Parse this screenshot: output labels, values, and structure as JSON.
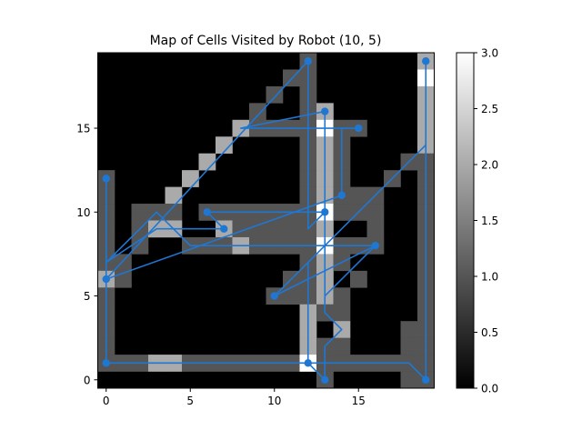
{
  "chart_data": {
    "type": "heatmap",
    "title": "Map of Cells Visited by Robot (10, 5)",
    "xlabel": "",
    "ylabel": "",
    "xlim": [
      -0.5,
      19.5
    ],
    "ylim": [
      -0.5,
      19.5
    ],
    "x_ticks": [
      0,
      5,
      10,
      15
    ],
    "y_ticks": [
      0,
      5,
      10,
      15
    ],
    "colorbar": {
      "min": 0.0,
      "max": 3.0,
      "colormap": "gray",
      "ticks": [
        "0.0",
        "0.5",
        "1.0",
        "1.5",
        "2.0",
        "2.5",
        "3.0"
      ]
    },
    "cell_values": [
      {
        "x": 0,
        "y": 12,
        "v": 1
      },
      {
        "x": 0,
        "y": 11,
        "v": 1
      },
      {
        "x": 0,
        "y": 10,
        "v": 1
      },
      {
        "x": 0,
        "y": 9,
        "v": 1
      },
      {
        "x": 0,
        "y": 8,
        "v": 1
      },
      {
        "x": 0,
        "y": 7,
        "v": 1
      },
      {
        "x": 0,
        "y": 6,
        "v": 2
      },
      {
        "x": 0,
        "y": 5,
        "v": 1
      },
      {
        "x": 0,
        "y": 4,
        "v": 1
      },
      {
        "x": 0,
        "y": 3,
        "v": 1
      },
      {
        "x": 0,
        "y": 2,
        "v": 1
      },
      {
        "x": 0,
        "y": 1,
        "v": 1
      },
      {
        "x": 1,
        "y": 7,
        "v": 1
      },
      {
        "x": 1,
        "y": 6,
        "v": 1
      },
      {
        "x": 1,
        "y": 1,
        "v": 1
      },
      {
        "x": 2,
        "y": 10,
        "v": 1
      },
      {
        "x": 2,
        "y": 9,
        "v": 1
      },
      {
        "x": 2,
        "y": 8,
        "v": 1
      },
      {
        "x": 2,
        "y": 1,
        "v": 1
      },
      {
        "x": 3,
        "y": 10,
        "v": 1
      },
      {
        "x": 3,
        "y": 9,
        "v": 2
      },
      {
        "x": 3,
        "y": 1,
        "v": 2
      },
      {
        "x": 4,
        "y": 11,
        "v": 2
      },
      {
        "x": 4,
        "y": 10,
        "v": 1
      },
      {
        "x": 4,
        "y": 9,
        "v": 2
      },
      {
        "x": 4,
        "y": 1,
        "v": 2
      },
      {
        "x": 5,
        "y": 12,
        "v": 2
      },
      {
        "x": 5,
        "y": 8,
        "v": 1
      },
      {
        "x": 5,
        "y": 1,
        "v": 1
      },
      {
        "x": 6,
        "y": 13,
        "v": 2
      },
      {
        "x": 6,
        "y": 10,
        "v": 1
      },
      {
        "x": 6,
        "y": 8,
        "v": 1
      },
      {
        "x": 6,
        "y": 1,
        "v": 1
      },
      {
        "x": 7,
        "y": 14,
        "v": 2
      },
      {
        "x": 7,
        "y": 10,
        "v": 1
      },
      {
        "x": 7,
        "y": 9,
        "v": 2
      },
      {
        "x": 7,
        "y": 8,
        "v": 1
      },
      {
        "x": 7,
        "y": 1,
        "v": 1
      },
      {
        "x": 8,
        "y": 15,
        "v": 2
      },
      {
        "x": 8,
        "y": 10,
        "v": 1
      },
      {
        "x": 8,
        "y": 9,
        "v": 1
      },
      {
        "x": 8,
        "y": 8,
        "v": 2
      },
      {
        "x": 8,
        "y": 1,
        "v": 1
      },
      {
        "x": 9,
        "y": 16,
        "v": 1
      },
      {
        "x": 9,
        "y": 15,
        "v": 1
      },
      {
        "x": 9,
        "y": 10,
        "v": 1
      },
      {
        "x": 9,
        "y": 9,
        "v": 1
      },
      {
        "x": 9,
        "y": 8,
        "v": 1
      },
      {
        "x": 9,
        "y": 1,
        "v": 1
      },
      {
        "x": 10,
        "y": 17,
        "v": 1
      },
      {
        "x": 10,
        "y": 15,
        "v": 1
      },
      {
        "x": 10,
        "y": 10,
        "v": 1
      },
      {
        "x": 10,
        "y": 9,
        "v": 1
      },
      {
        "x": 10,
        "y": 8,
        "v": 1
      },
      {
        "x": 10,
        "y": 5,
        "v": 1
      },
      {
        "x": 10,
        "y": 1,
        "v": 1
      },
      {
        "x": 11,
        "y": 18,
        "v": 1
      },
      {
        "x": 11,
        "y": 15,
        "v": 1
      },
      {
        "x": 11,
        "y": 10,
        "v": 1
      },
      {
        "x": 11,
        "y": 9,
        "v": 1
      },
      {
        "x": 11,
        "y": 8,
        "v": 1
      },
      {
        "x": 11,
        "y": 6,
        "v": 1
      },
      {
        "x": 11,
        "y": 5,
        "v": 1
      },
      {
        "x": 11,
        "y": 1,
        "v": 1
      },
      {
        "x": 12,
        "y": 19,
        "v": 1
      },
      {
        "x": 12,
        "y": 18,
        "v": 1
      },
      {
        "x": 12,
        "y": 17,
        "v": 1
      },
      {
        "x": 12,
        "y": 16,
        "v": 1
      },
      {
        "x": 12,
        "y": 15,
        "v": 1
      },
      {
        "x": 12,
        "y": 14,
        "v": 1
      },
      {
        "x": 12,
        "y": 13,
        "v": 1
      },
      {
        "x": 12,
        "y": 12,
        "v": 1
      },
      {
        "x": 12,
        "y": 11,
        "v": 1
      },
      {
        "x": 12,
        "y": 10,
        "v": 1
      },
      {
        "x": 12,
        "y": 9,
        "v": 1
      },
      {
        "x": 12,
        "y": 8,
        "v": 1
      },
      {
        "x": 12,
        "y": 7,
        "v": 1
      },
      {
        "x": 12,
        "y": 6,
        "v": 1
      },
      {
        "x": 12,
        "y": 5,
        "v": 1
      },
      {
        "x": 12,
        "y": 4,
        "v": 2
      },
      {
        "x": 12,
        "y": 3,
        "v": 2
      },
      {
        "x": 12,
        "y": 2,
        "v": 2
      },
      {
        "x": 12,
        "y": 1,
        "v": 3
      },
      {
        "x": 13,
        "y": 16,
        "v": 2
      },
      {
        "x": 13,
        "y": 15,
        "v": 3
      },
      {
        "x": 13,
        "y": 14,
        "v": 2
      },
      {
        "x": 13,
        "y": 13,
        "v": 2
      },
      {
        "x": 13,
        "y": 12,
        "v": 2
      },
      {
        "x": 13,
        "y": 11,
        "v": 2
      },
      {
        "x": 13,
        "y": 10,
        "v": 3
      },
      {
        "x": 13,
        "y": 9,
        "v": 2
      },
      {
        "x": 13,
        "y": 8,
        "v": 3
      },
      {
        "x": 13,
        "y": 7,
        "v": 2
      },
      {
        "x": 13,
        "y": 6,
        "v": 2
      },
      {
        "x": 13,
        "y": 5,
        "v": 2
      },
      {
        "x": 13,
        "y": 4,
        "v": 1
      },
      {
        "x": 13,
        "y": 2,
        "v": 1
      },
      {
        "x": 13,
        "y": 1,
        "v": 1
      },
      {
        "x": 13,
        "y": 0,
        "v": 1
      },
      {
        "x": 14,
        "y": 15,
        "v": 1
      },
      {
        "x": 14,
        "y": 14,
        "v": 1
      },
      {
        "x": 14,
        "y": 13,
        "v": 1
      },
      {
        "x": 14,
        "y": 12,
        "v": 1
      },
      {
        "x": 14,
        "y": 11,
        "v": 1
      },
      {
        "x": 14,
        "y": 10,
        "v": 1
      },
      {
        "x": 14,
        "y": 8,
        "v": 1
      },
      {
        "x": 14,
        "y": 7,
        "v": 1
      },
      {
        "x": 14,
        "y": 5,
        "v": 1
      },
      {
        "x": 14,
        "y": 4,
        "v": 1
      },
      {
        "x": 14,
        "y": 3,
        "v": 2
      },
      {
        "x": 14,
        "y": 2,
        "v": 1
      },
      {
        "x": 14,
        "y": 1,
        "v": 1
      },
      {
        "x": 15,
        "y": 15,
        "v": 1
      },
      {
        "x": 15,
        "y": 11,
        "v": 1
      },
      {
        "x": 15,
        "y": 10,
        "v": 1
      },
      {
        "x": 15,
        "y": 8,
        "v": 1
      },
      {
        "x": 15,
        "y": 6,
        "v": 1
      },
      {
        "x": 15,
        "y": 1,
        "v": 1
      },
      {
        "x": 16,
        "y": 11,
        "v": 1
      },
      {
        "x": 16,
        "y": 10,
        "v": 1
      },
      {
        "x": 16,
        "y": 9,
        "v": 1
      },
      {
        "x": 16,
        "y": 8,
        "v": 1
      },
      {
        "x": 16,
        "y": 1,
        "v": 1
      },
      {
        "x": 17,
        "y": 12,
        "v": 1
      },
      {
        "x": 17,
        "y": 1,
        "v": 1
      },
      {
        "x": 18,
        "y": 13,
        "v": 1
      },
      {
        "x": 18,
        "y": 3,
        "v": 1
      },
      {
        "x": 18,
        "y": 2,
        "v": 1
      },
      {
        "x": 18,
        "y": 1,
        "v": 1
      },
      {
        "x": 18,
        "y": 0,
        "v": 1
      },
      {
        "x": 19,
        "y": 19,
        "v": 2
      },
      {
        "x": 19,
        "y": 18,
        "v": 3
      },
      {
        "x": 19,
        "y": 17,
        "v": 2
      },
      {
        "x": 19,
        "y": 16,
        "v": 2
      },
      {
        "x": 19,
        "y": 15,
        "v": 2
      },
      {
        "x": 19,
        "y": 14,
        "v": 2
      },
      {
        "x": 19,
        "y": 13,
        "v": 1
      },
      {
        "x": 19,
        "y": 12,
        "v": 1
      },
      {
        "x": 19,
        "y": 11,
        "v": 1
      },
      {
        "x": 19,
        "y": 10,
        "v": 1
      },
      {
        "x": 19,
        "y": 9,
        "v": 1
      },
      {
        "x": 19,
        "y": 8,
        "v": 1
      },
      {
        "x": 19,
        "y": 7,
        "v": 1
      },
      {
        "x": 19,
        "y": 6,
        "v": 1
      },
      {
        "x": 19,
        "y": 5,
        "v": 1
      },
      {
        "x": 19,
        "y": 4,
        "v": 1
      },
      {
        "x": 19,
        "y": 3,
        "v": 1
      },
      {
        "x": 19,
        "y": 2,
        "v": 1
      },
      {
        "x": 19,
        "y": 1,
        "v": 1
      },
      {
        "x": 19,
        "y": 0,
        "v": 1
      }
    ],
    "path": [
      [
        0,
        12
      ],
      [
        0,
        6
      ],
      [
        12,
        19
      ],
      [
        12,
        9
      ],
      [
        13,
        10
      ],
      [
        6,
        10
      ],
      [
        7,
        9
      ],
      [
        4,
        9
      ],
      [
        3,
        9
      ],
      [
        0,
        7
      ],
      [
        0,
        6
      ],
      [
        0,
        1
      ],
      [
        13,
        1
      ],
      [
        18,
        1
      ],
      [
        19,
        0
      ],
      [
        19,
        19
      ],
      [
        19,
        14
      ],
      [
        10,
        5
      ],
      [
        16,
        8
      ],
      [
        5,
        8
      ],
      [
        3,
        10
      ],
      [
        0,
        7
      ],
      [
        0,
        6
      ],
      [
        14,
        11
      ],
      [
        14,
        15
      ],
      [
        15,
        15
      ],
      [
        8,
        15
      ],
      [
        13,
        16
      ],
      [
        13,
        5
      ],
      [
        16,
        8
      ],
      [
        13,
        5
      ],
      [
        13,
        4
      ],
      [
        14,
        3
      ],
      [
        13,
        2
      ],
      [
        13,
        0
      ],
      [
        12,
        1
      ],
      [
        12,
        2
      ],
      [
        12,
        7
      ]
    ],
    "waypoints": [
      [
        0,
        12
      ],
      [
        0,
        6
      ],
      [
        0,
        1
      ],
      [
        12,
        19
      ],
      [
        13,
        16
      ],
      [
        15,
        15
      ],
      [
        14,
        11
      ],
      [
        13,
        10
      ],
      [
        6,
        10
      ],
      [
        7,
        9
      ],
      [
        16,
        8
      ],
      [
        10,
        5
      ],
      [
        12,
        1
      ],
      [
        13,
        0
      ],
      [
        19,
        0
      ],
      [
        19,
        19
      ]
    ],
    "line_color": "#1f77d4"
  }
}
